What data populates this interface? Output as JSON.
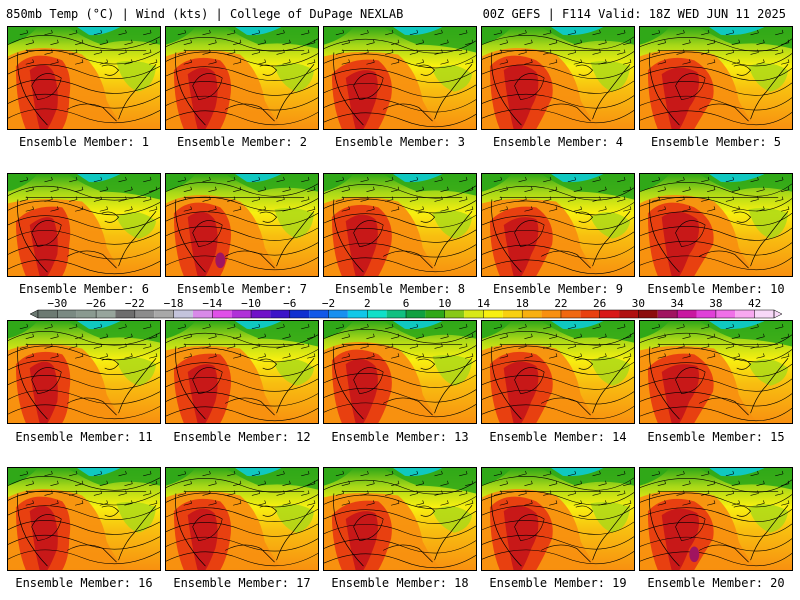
{
  "header": {
    "left_title": "850mb Temp (°C) | Wind (kts) | College of DuPage NEXLAB",
    "right_title": "00Z GEFS | F114 Valid: 18Z WED JUN 11 2025"
  },
  "colorbar": {
    "unit": "°C",
    "tick_labels": [
      "−30",
      "−26",
      "−22",
      "−18",
      "−14",
      "−10",
      "−6",
      "−2",
      "2",
      "6",
      "10",
      "14",
      "18",
      "22",
      "26",
      "30",
      "34",
      "38",
      "42"
    ],
    "bins": [
      {
        "from": -32,
        "to": -30,
        "color": "#6c7a72"
      },
      {
        "from": -30,
        "to": -28,
        "color": "#7a8a82"
      },
      {
        "from": -28,
        "to": -26,
        "color": "#8a9a90"
      },
      {
        "from": -26,
        "to": -24,
        "color": "#97a59c"
      },
      {
        "from": -24,
        "to": -22,
        "color": "#6e6e6e"
      },
      {
        "from": -22,
        "to": -20,
        "color": "#8c8c8c"
      },
      {
        "from": -20,
        "to": -18,
        "color": "#a8a8a8"
      },
      {
        "from": -18,
        "to": -16,
        "color": "#c4c4dc"
      },
      {
        "from": -16,
        "to": -14,
        "color": "#d88ae8"
      },
      {
        "from": -14,
        "to": -12,
        "color": "#e050e8"
      },
      {
        "from": -12,
        "to": -10,
        "color": "#b030d8"
      },
      {
        "from": -10,
        "to": -8,
        "color": "#7010c8"
      },
      {
        "from": -8,
        "to": -6,
        "color": "#3c14c8"
      },
      {
        "from": -6,
        "to": -4,
        "color": "#1030d0"
      },
      {
        "from": -4,
        "to": -2,
        "color": "#1058e8"
      },
      {
        "from": -2,
        "to": 0,
        "color": "#1890f0"
      },
      {
        "from": 0,
        "to": 2,
        "color": "#10c8e8"
      },
      {
        "from": 2,
        "to": 4,
        "color": "#10e0c8"
      },
      {
        "from": 4,
        "to": 6,
        "color": "#10c080"
      },
      {
        "from": 6,
        "to": 8,
        "color": "#10a040"
      },
      {
        "from": 8,
        "to": 10,
        "color": "#30a818"
      },
      {
        "from": 10,
        "to": 12,
        "color": "#88c818"
      },
      {
        "from": 12,
        "to": 14,
        "color": "#d8e818"
      },
      {
        "from": 14,
        "to": 16,
        "color": "#f8f010"
      },
      {
        "from": 16,
        "to": 18,
        "color": "#f8d010"
      },
      {
        "from": 18,
        "to": 20,
        "color": "#f8b010"
      },
      {
        "from": 20,
        "to": 22,
        "color": "#f89010"
      },
      {
        "from": 22,
        "to": 24,
        "color": "#f06810"
      },
      {
        "from": 24,
        "to": 26,
        "color": "#e84010"
      },
      {
        "from": 26,
        "to": 28,
        "color": "#d81818"
      },
      {
        "from": 28,
        "to": 30,
        "color": "#b01010"
      },
      {
        "from": 30,
        "to": 32,
        "color": "#8c0c0c"
      },
      {
        "from": 32,
        "to": 34,
        "color": "#a01460"
      },
      {
        "from": 34,
        "to": 36,
        "color": "#c818a0"
      },
      {
        "from": 36,
        "to": 38,
        "color": "#e040d8"
      },
      {
        "from": 38,
        "to": 40,
        "color": "#f070e8"
      },
      {
        "from": 40,
        "to": 42,
        "color": "#f8a8f0"
      },
      {
        "from": 42,
        "to": 44,
        "color": "#f8d8f8"
      }
    ]
  },
  "members": [
    {
      "label": "Ensemble Member: 1"
    },
    {
      "label": "Ensemble Member: 2"
    },
    {
      "label": "Ensemble Member: 3"
    },
    {
      "label": "Ensemble Member: 4"
    },
    {
      "label": "Ensemble Member: 5"
    },
    {
      "label": "Ensemble Member: 6"
    },
    {
      "label": "Ensemble Member: 7"
    },
    {
      "label": "Ensemble Member: 8"
    },
    {
      "label": "Ensemble Member: 9"
    },
    {
      "label": "Ensemble Member: 10"
    },
    {
      "label": "Ensemble Member: 11"
    },
    {
      "label": "Ensemble Member: 12"
    },
    {
      "label": "Ensemble Member: 13"
    },
    {
      "label": "Ensemble Member: 14"
    },
    {
      "label": "Ensemble Member: 15"
    },
    {
      "label": "Ensemble Member: 16"
    },
    {
      "label": "Ensemble Member: 17"
    },
    {
      "label": "Ensemble Member: 18"
    },
    {
      "label": "Ensemble Member: 19"
    },
    {
      "label": "Ensemble Member: 20"
    }
  ],
  "map_colors": {
    "hot_core": "#c81818",
    "hot": "#e84010",
    "warm": "#f89010",
    "mild": "#f8c010",
    "yellow": "#f8f010",
    "lime": "#a8d818",
    "green": "#30a818",
    "teal": "#10c8c0",
    "contour": "#000000"
  }
}
